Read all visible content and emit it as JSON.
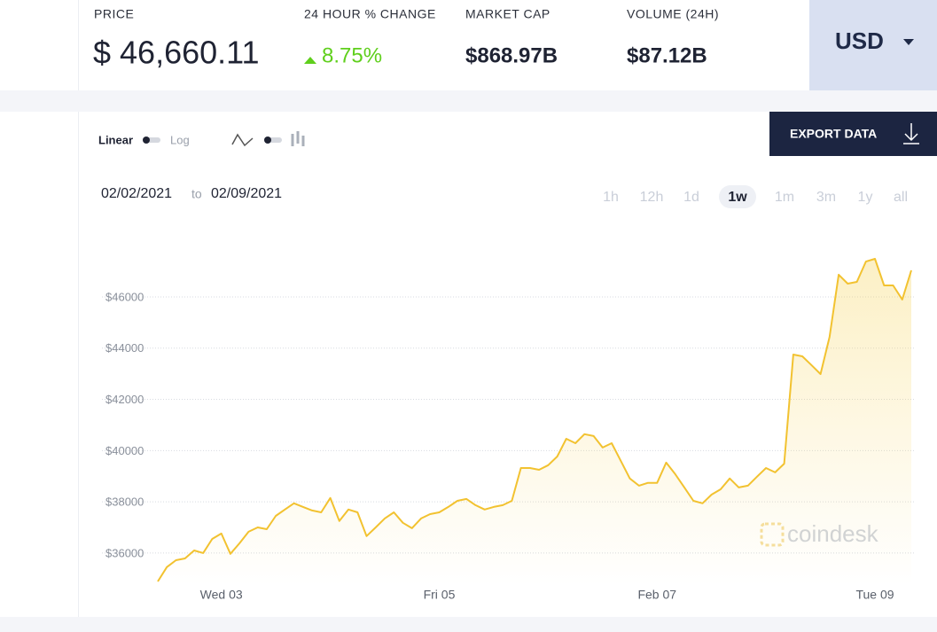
{
  "header": {
    "price_label": "PRICE",
    "price": "$ 46,660.11",
    "change_label": "24 HOUR % CHANGE",
    "change": "8.75%",
    "market_cap_label": "MARKET CAP",
    "market_cap": "$868.97B",
    "volume_label": "VOLUME (24H)",
    "volume": "$87.12B",
    "currency": "USD"
  },
  "controls": {
    "linear": "Linear",
    "log": "Log",
    "export": "EXPORT DATA",
    "date_from": "02/02/2021",
    "date_to_word": "to",
    "date_to": "02/09/2021",
    "ranges": [
      "1h",
      "12h",
      "1d",
      "1w",
      "1m",
      "3m",
      "1y",
      "all"
    ],
    "selected_range": "1w",
    "watermark": "coindesk"
  },
  "chart_data": {
    "type": "line",
    "color": "#f2c230",
    "grid": true,
    "categories": [
      null,
      null,
      null,
      null,
      null,
      null,
      null,
      "Wed 03",
      null,
      null,
      null,
      null,
      null,
      null,
      null,
      null,
      null,
      null,
      null,
      null,
      null,
      null,
      null,
      null,
      null,
      null,
      null,
      null,
      null,
      null,
      null,
      "Fri 05",
      null,
      null,
      null,
      null,
      null,
      null,
      null,
      null,
      null,
      null,
      null,
      null,
      null,
      null,
      null,
      null,
      null,
      null,
      null,
      null,
      null,
      null,
      null,
      "Feb 07",
      null,
      null,
      null,
      null,
      null,
      null,
      null,
      null,
      null,
      null,
      null,
      null,
      null,
      null,
      null,
      null,
      null,
      null,
      null,
      null,
      null,
      null,
      null,
      "Tue 09",
      null,
      null,
      null,
      null
    ],
    "values": [
      34890,
      35450,
      35720,
      35790,
      36100,
      36000,
      36550,
      36760,
      35970,
      36380,
      36830,
      37000,
      36930,
      37450,
      37700,
      37940,
      37800,
      37660,
      37590,
      38150,
      37250,
      37700,
      37590,
      36660,
      37000,
      37350,
      37590,
      37180,
      36970,
      37350,
      37520,
      37590,
      37800,
      38040,
      38110,
      37870,
      37700,
      37800,
      37870,
      38040,
      39320,
      39320,
      39250,
      39430,
      39770,
      40460,
      40290,
      40640,
      40570,
      40120,
      40290,
      39600,
      38910,
      38630,
      38740,
      38740,
      39530,
      39080,
      38560,
      38040,
      37940,
      38280,
      38490,
      38910,
      38560,
      38630,
      38980,
      39320,
      39150,
      39490,
      43750,
      43680,
      43340,
      42990,
      44440,
      46870,
      46520,
      46590,
      47380,
      47490,
      46450,
      46450,
      45900,
      47040
    ],
    "ylim": [
      34750,
      48250
    ],
    "yticks": [
      {
        "value": 36000,
        "label": "$36000"
      },
      {
        "value": 38000,
        "label": "$38000"
      },
      {
        "value": 40000,
        "label": "$40000"
      },
      {
        "value": 42000,
        "label": "$42000"
      },
      {
        "value": 44000,
        "label": "$44000"
      },
      {
        "value": 46000,
        "label": "$46000"
      }
    ]
  }
}
